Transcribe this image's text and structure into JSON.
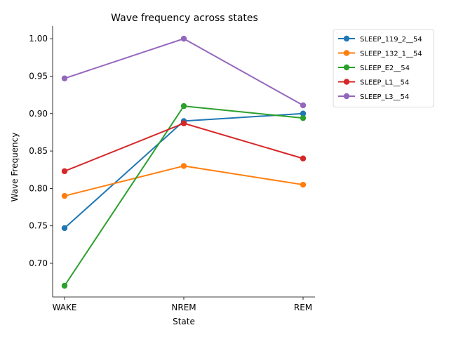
{
  "chart_data": {
    "type": "line",
    "title": "Wave frequency across states",
    "xlabel": "State",
    "ylabel": "Wave Frequency",
    "categories": [
      "WAKE",
      "NREM",
      "REM"
    ],
    "ylim": [
      0.655,
      1.017
    ],
    "yticks": [
      0.7,
      0.75,
      0.8,
      0.85,
      0.9,
      0.95,
      1.0
    ],
    "ytick_labels": [
      "0.70",
      "0.75",
      "0.80",
      "0.85",
      "0.90",
      "0.95",
      "1.00"
    ],
    "grid": false,
    "legend_position": "outside-top-right",
    "series": [
      {
        "name": "SLEEP_119_2__54",
        "color": "#1f77b4",
        "values": [
          0.747,
          0.89,
          0.9
        ]
      },
      {
        "name": "SLEEP_132_1__54",
        "color": "#ff7f0e",
        "values": [
          0.79,
          0.83,
          0.805
        ]
      },
      {
        "name": "SLEEP_E2__54",
        "color": "#2ca02c",
        "values": [
          0.67,
          0.91,
          0.894
        ]
      },
      {
        "name": "SLEEP_L1__54",
        "color": "#d62728",
        "values": [
          0.823,
          0.887,
          0.84
        ]
      },
      {
        "name": "SLEEP_L3__54",
        "color": "#9467bd",
        "values": [
          0.947,
          1.0,
          0.911
        ]
      }
    ]
  }
}
